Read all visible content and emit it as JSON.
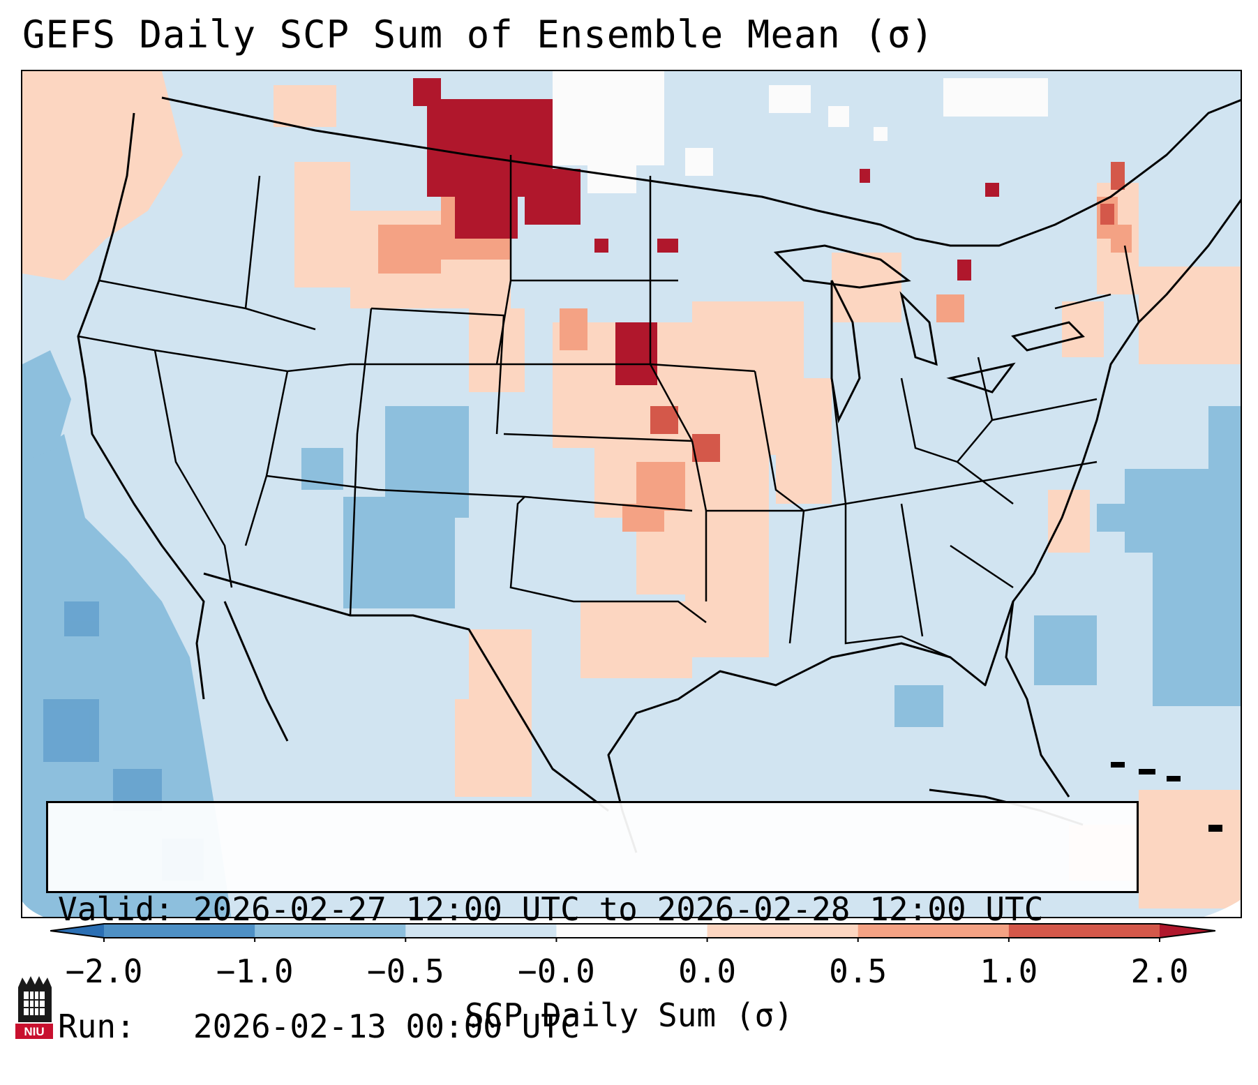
{
  "title": "GEFS Daily SCP Sum of Ensemble Mean (σ)",
  "info": {
    "valid_label": "Valid:",
    "valid_value": "2026-02-27 12:00 UTC to 2026-02-28 12:00 UTC",
    "run_label": "Run:",
    "run_value": "2026-02-13 00:00 UTC"
  },
  "colorbar": {
    "label": "SCP Daily Sum (σ)",
    "ticks": [
      "−2.0",
      "−1.0",
      "−0.5",
      "−0.0",
      "0.0",
      "0.5",
      "1.0",
      "2.0"
    ],
    "colors": [
      "#2b6fb4",
      "#4e90c5",
      "#8dbfdd",
      "#d1e4f1",
      "#fbfbfb",
      "#fcd6c1",
      "#f4a284",
      "#d4584a",
      "#b0172c"
    ],
    "extend": "both"
  },
  "map": {
    "domain": "CONUS",
    "background_color": "#d1e4f1",
    "outside_color": "#ffffff"
  },
  "logo": {
    "text": "NIU",
    "accent": "#c8102e"
  }
}
